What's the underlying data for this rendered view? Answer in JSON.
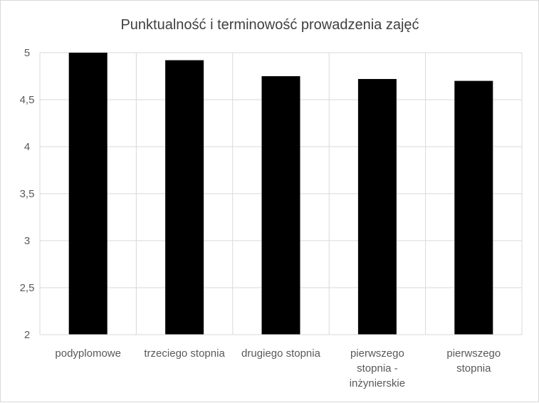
{
  "chart_data": {
    "type": "bar",
    "title": "Punktualność i terminowość prowadzenia zajęć",
    "categories": [
      [
        "podyplomowe"
      ],
      [
        "trzeciego stopnia"
      ],
      [
        "drugiego stopnia"
      ],
      [
        "pierwszego",
        "stopnia -",
        "inżynierskie"
      ],
      [
        "pierwszego",
        "stopnia"
      ]
    ],
    "values": [
      5.0,
      4.92,
      4.75,
      4.72,
      4.7
    ],
    "ylim": [
      2,
      5
    ],
    "yticks": [
      "2",
      "2,5",
      "3",
      "3,5",
      "4",
      "4,5",
      "5"
    ],
    "grid": true,
    "bar_color": "#000000",
    "grid_color": "#d9d9d9",
    "legend": "none"
  }
}
